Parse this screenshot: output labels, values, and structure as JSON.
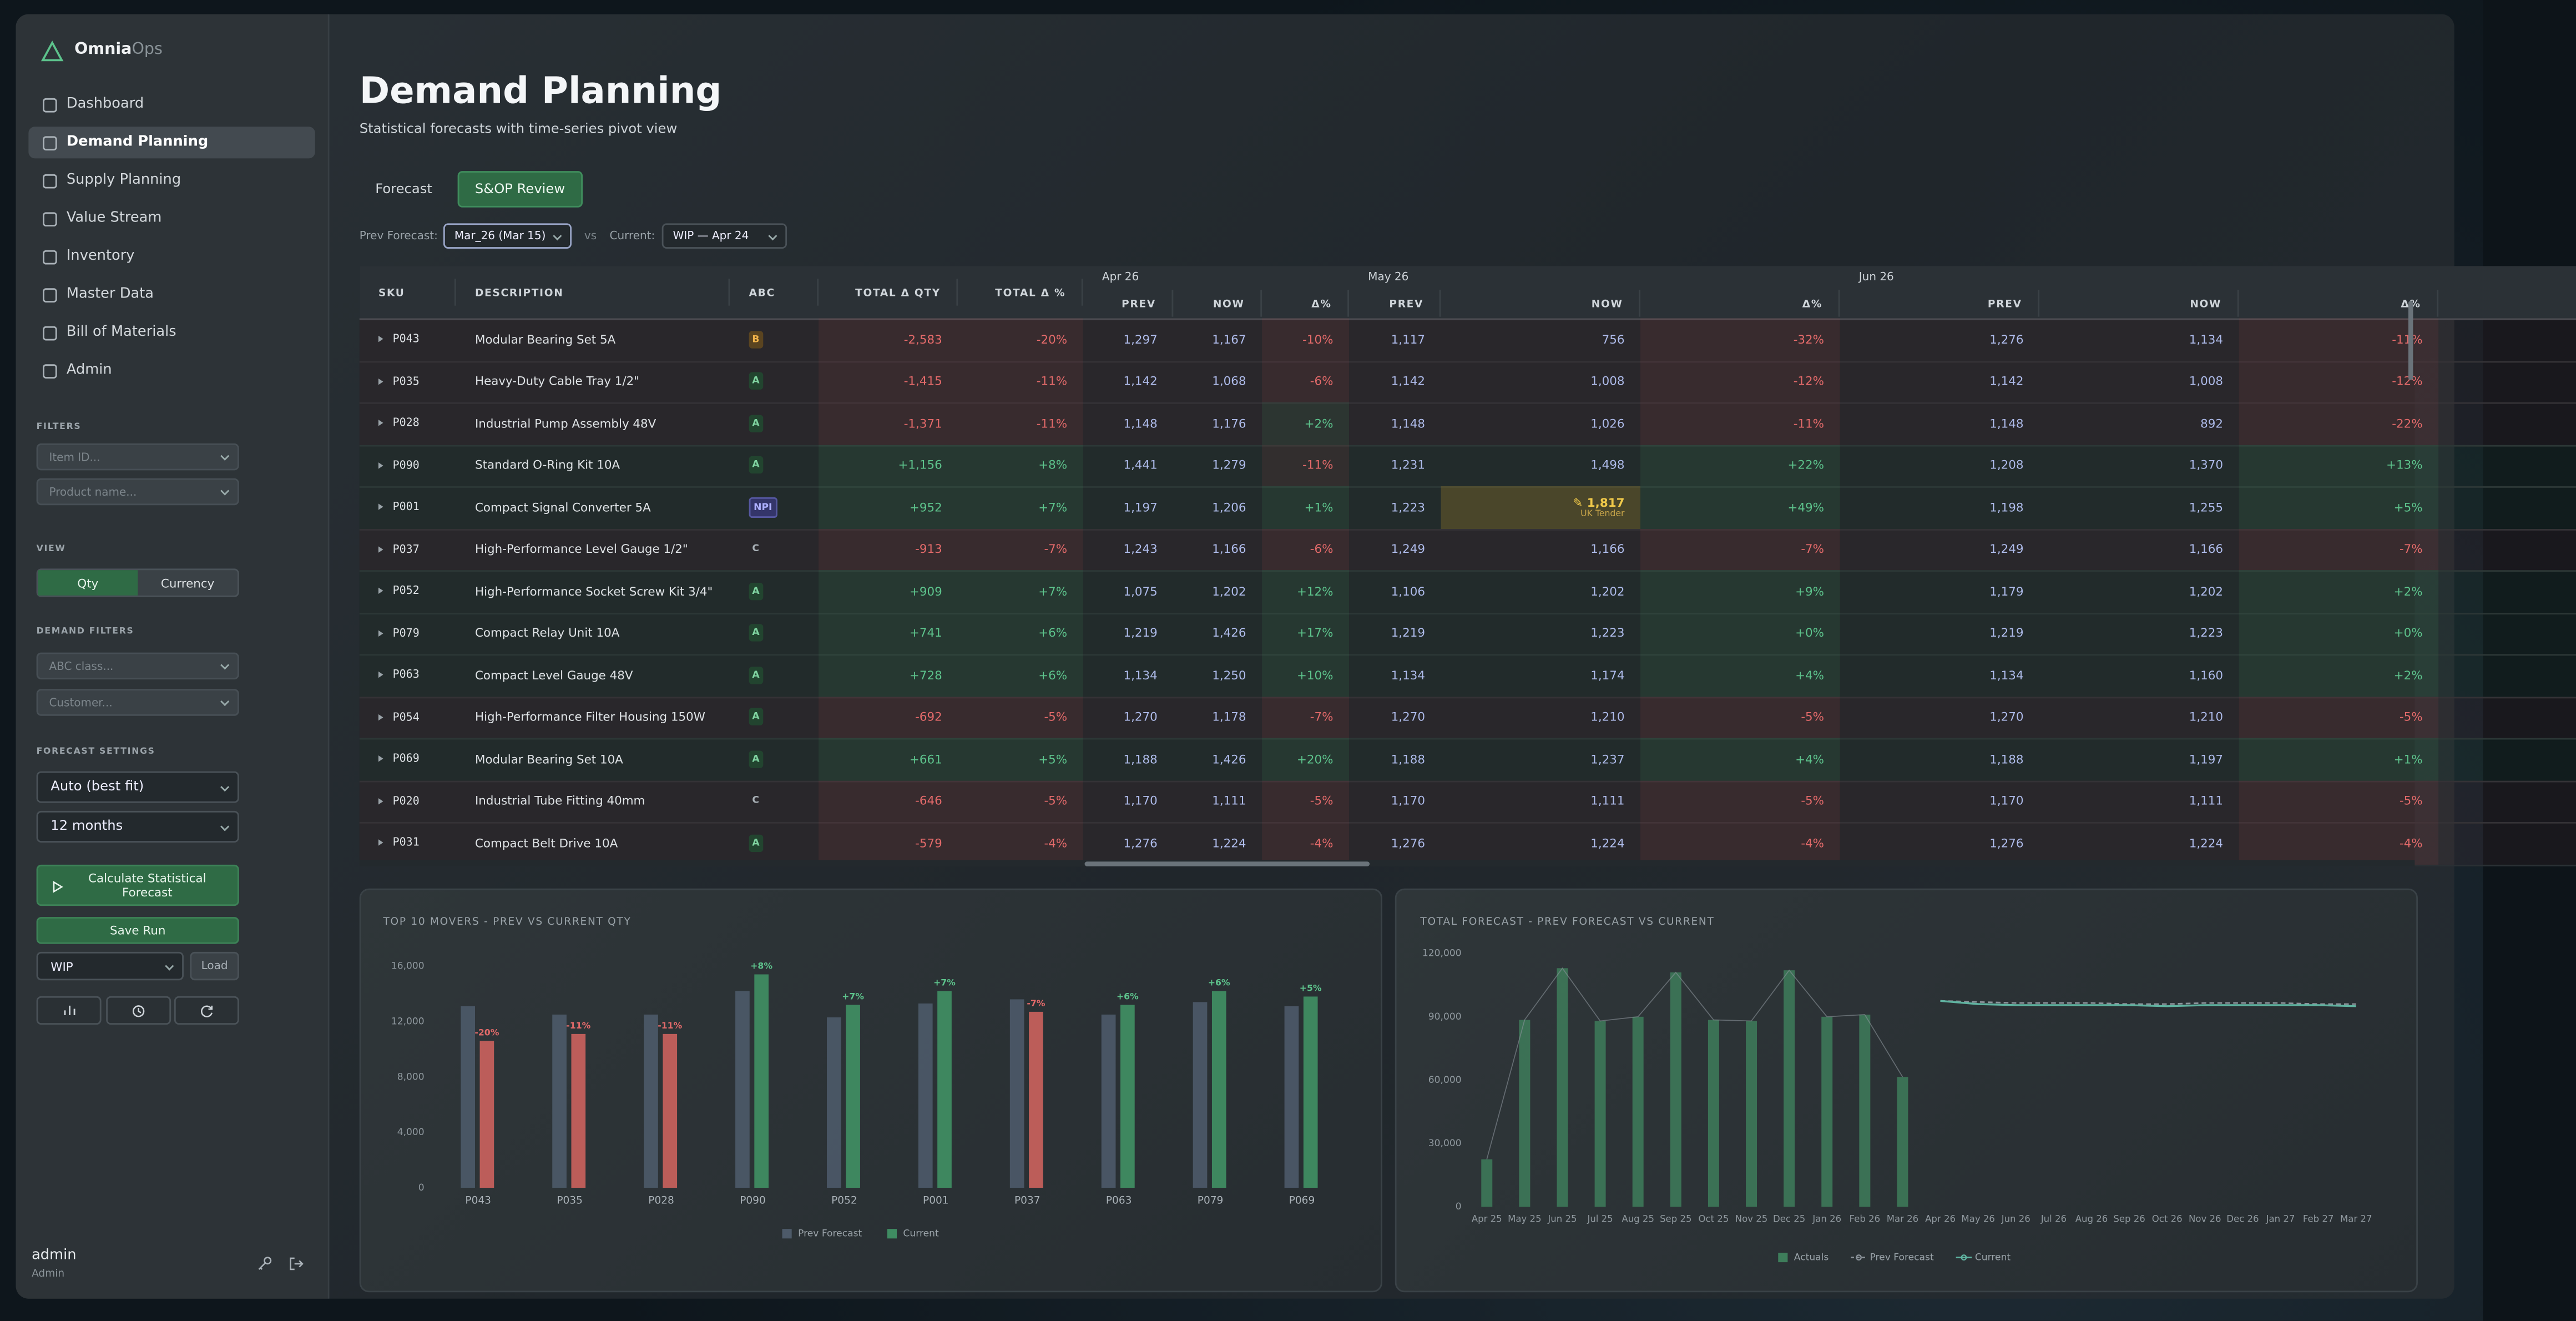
{
  "sidebar": {
    "brand": "Omnia",
    "brand_suffix": "Ops",
    "nav": [
      {
        "label": "Dashboard"
      },
      {
        "label": "Demand Planning",
        "active": true
      },
      {
        "label": "Supply Planning"
      },
      {
        "label": "Value Stream"
      },
      {
        "label": "Inventory"
      },
      {
        "label": "Master Data"
      },
      {
        "label": "Bill of Materials"
      },
      {
        "label": "Admin"
      }
    ],
    "filters_label": "FILTERS",
    "item_placeholder": "Item ID...",
    "product_placeholder": "Product name...",
    "view_label": "VIEW",
    "view_options": [
      {
        "label": "Qty",
        "active": true
      },
      {
        "label": "Currency"
      }
    ],
    "demand_filters_label": "DEMAND FILTERS",
    "abc_placeholder": "ABC class...",
    "customer_placeholder": "Customer...",
    "forecast_settings_label": "FORECAST SETTINGS",
    "method": "Auto (best fit)",
    "horizon": "12 months",
    "calculate_button": "Calculate Statistical Forecast",
    "save_button": "Save Run",
    "run_select": "WIP",
    "load_button": "Load",
    "user_name": "admin",
    "user_role": "Admin"
  },
  "header": {
    "title": "Demand Planning",
    "subtitle": "Statistical forecasts with time-series pivot view",
    "tabs": [
      {
        "label": "Forecast"
      },
      {
        "label": "S&OP Review",
        "active": true
      }
    ],
    "prev_label": "Prev Forecast:",
    "prev_value": "Mar_26 (Mar 15)",
    "vs": "vs",
    "current_label": "Current:",
    "current_value": "WIP — Apr 24"
  },
  "table": {
    "columns": [
      "SKU",
      "DESCRIPTION",
      "ABC",
      "TOTAL Δ QTY",
      "TOTAL Δ %"
    ],
    "months": [
      "Apr 26",
      "May 26",
      "Jun 26"
    ],
    "subcolumns": [
      "PREV",
      "NOW",
      "Δ%"
    ],
    "rows": [
      [
        "P043",
        "Modular Bearing Set 5A",
        "B",
        "-2,583",
        "-20%",
        "1,297",
        "1,167",
        "-10%",
        "1,117",
        "756",
        "-32%",
        "1,276",
        "1,134",
        "-11%"
      ],
      [
        "P035",
        "Heavy-Duty Cable Tray 1/2\"",
        "A",
        "-1,415",
        "-11%",
        "1,142",
        "1,068",
        "-6%",
        "1,142",
        "1,008",
        "-12%",
        "1,142",
        "1,008",
        "-12%"
      ],
      [
        "P028",
        "Industrial Pump Assembly 48V",
        "A",
        "-1,371",
        "-11%",
        "1,148",
        "1,176",
        "+2%",
        "1,148",
        "1,026",
        "-11%",
        "1,148",
        "892",
        "-22%"
      ],
      [
        "P090",
        "Standard O-Ring Kit 10A",
        "A",
        "+1,156",
        "+8%",
        "1,441",
        "1,279",
        "-11%",
        "1,231",
        "1,498",
        "+22%",
        "1,208",
        "1,370",
        "+13%"
      ],
      [
        "P001",
        "Compact Signal Converter 5A",
        "NPI",
        "+952",
        "+7%",
        "1,197",
        "1,206",
        "+1%",
        "1,223",
        {
          "text": "✎ 1,817",
          "note": "UK Tender"
        },
        "+49%",
        "1,198",
        "1,255",
        "+5%"
      ],
      [
        "P037",
        "High-Performance Level Gauge 1/2\"",
        "C",
        "-913",
        "-7%",
        "1,243",
        "1,166",
        "-6%",
        "1,249",
        "1,166",
        "-7%",
        "1,249",
        "1,166",
        "-7%"
      ],
      [
        "P052",
        "High-Performance Socket Screw Kit 3/4\"",
        "A",
        "+909",
        "+7%",
        "1,075",
        "1,202",
        "+12%",
        "1,106",
        "1,202",
        "+9%",
        "1,179",
        "1,202",
        "+2%"
      ],
      [
        "P079",
        "Compact Relay Unit 10A",
        "A",
        "+741",
        "+6%",
        "1,219",
        "1,426",
        "+17%",
        "1,219",
        "1,223",
        "+0%",
        "1,219",
        "1,223",
        "+0%"
      ],
      [
        "P063",
        "Compact Level Gauge 48V",
        "A",
        "+728",
        "+6%",
        "1,134",
        "1,250",
        "+10%",
        "1,134",
        "1,174",
        "+4%",
        "1,134",
        "1,160",
        "+2%"
      ],
      [
        "P054",
        "High-Performance Filter Housing 150W",
        "A",
        "-692",
        "-5%",
        "1,270",
        "1,178",
        "-7%",
        "1,270",
        "1,210",
        "-5%",
        "1,270",
        "1,210",
        "-5%"
      ],
      [
        "P069",
        "Modular Bearing Set 10A",
        "A",
        "+661",
        "+5%",
        "1,188",
        "1,426",
        "+20%",
        "1,188",
        "1,237",
        "+4%",
        "1,188",
        "1,197",
        "+1%"
      ],
      [
        "P020",
        "Industrial Tube Fitting 40mm",
        "C",
        "-646",
        "-5%",
        "1,170",
        "1,111",
        "-5%",
        "1,170",
        "1,111",
        "-5%",
        "1,170",
        "1,111",
        "-5%"
      ],
      [
        "P031",
        "Compact Belt Drive 10A",
        "A",
        "-579",
        "-4%",
        "1,276",
        "1,224",
        "-4%",
        "1,276",
        "1,224",
        "-4%",
        "1,276",
        "1,224",
        "-4%"
      ]
    ]
  },
  "movers_chart": {
    "type": "bar",
    "title": "TOP 10 MOVERS - PREV VS CURRENT QTY",
    "categories": [
      "P043",
      "P035",
      "P028",
      "P090",
      "P052",
      "P001",
      "P037",
      "P063",
      "P079",
      "P069"
    ],
    "series": [
      {
        "name": "Prev Forecast",
        "color": "#4d5a69",
        "values": [
          13100,
          12500,
          12500,
          14200,
          12300,
          13300,
          13600,
          12500,
          13400,
          13100
        ]
      },
      {
        "name": "Current",
        "color": "#3f8c62",
        "values": [
          10600,
          11100,
          11100,
          15400,
          13200,
          14200,
          12700,
          13200,
          14200,
          13800
        ],
        "delta_labels": [
          "-20%",
          "-11%",
          "-11%",
          "+8%",
          "+7%",
          "+7%",
          "-7%",
          "+6%",
          "+6%",
          "+5%"
        ]
      }
    ],
    "negative_color": "#c4605c",
    "ylim": [
      0,
      16000
    ],
    "yticks": [
      0,
      {
        "value": 4000,
        "label": "4,000"
      },
      {
        "value": 8000,
        "label": "8,000"
      },
      {
        "value": 12000,
        "label": "12,000"
      },
      {
        "value": 16000,
        "label": "16,000"
      }
    ],
    "grid": false
  },
  "forecast_chart": {
    "type": "combo",
    "title": "TOTAL FORECAST - PREV FORECAST VS CURRENT",
    "categories": [
      "Apr 25",
      "May 25",
      "Jun 25",
      "Jul 25",
      "Aug 25",
      "Sep 25",
      "Oct 25",
      "Nov 25",
      "Dec 25",
      "Jan 26",
      "Feb 26",
      "Mar 26",
      "Apr 26",
      "May 26",
      "Jun 26",
      "Jul 26",
      "Aug 26",
      "Sep 26",
      "Oct 26",
      "Nov 26",
      "Dec 26",
      "Jan 27",
      "Feb 27",
      "Mar 27"
    ],
    "series": [
      {
        "name": "Actuals",
        "color": "#3e7d5b",
        "kind": "bar",
        "values": [
          22500,
          88500,
          113000,
          88000,
          90000,
          111000,
          88500,
          88000,
          112000,
          90000,
          91000,
          61500,
          null,
          null,
          null,
          null,
          null,
          null,
          null,
          null,
          null,
          null,
          null,
          null
        ]
      },
      {
        "name": "Prev Forecast",
        "color": "#8b939a",
        "kind": "line",
        "dashed": true,
        "values": [
          22500,
          88500,
          113000,
          88000,
          90000,
          111000,
          88500,
          88000,
          112000,
          90000,
          91000,
          61500,
          97500,
          97000,
          96500,
          96500,
          96500,
          96000,
          96000,
          96500,
          96500,
          96500,
          96000,
          96000
        ]
      },
      {
        "name": "Current",
        "color": "#5fb3a0",
        "kind": "line",
        "values": [
          null,
          null,
          null,
          null,
          null,
          null,
          null,
          null,
          null,
          null,
          null,
          null,
          97500,
          96000,
          95500,
          95500,
          95500,
          95500,
          95000,
          95500,
          95500,
          95500,
          95500,
          95000
        ]
      }
    ],
    "ylim": [
      0,
      120000
    ],
    "yticks": [
      0,
      {
        "value": 30000,
        "label": "30,000"
      },
      {
        "value": 60000,
        "label": "60,000"
      },
      {
        "value": 90000,
        "label": "90,000"
      },
      {
        "value": 120000,
        "label": "120,000"
      }
    ],
    "grid": false
  }
}
